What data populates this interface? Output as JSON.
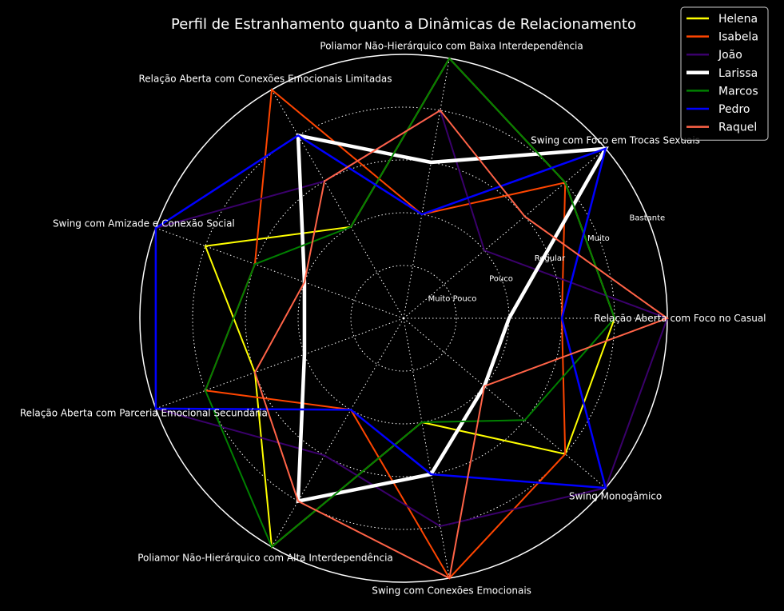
{
  "chart_data": {
    "type": "radar",
    "title": "Perfil de Estranhamento quanto a Dinâmicas de Relacionamento",
    "categories": [
      "Relação Aberta com Foco no Casual",
      "Swing com Foco em Trocas Sexuais",
      "Poliamor Não-Hierárquico com Baixa Interdependência",
      "Relação Aberta com Conexões Emocionais Limitadas",
      "Swing com Amizade e Conexão Social",
      "Relação Aberta com Parceria Emocional Secundária",
      "Poliamor Não-Hierárquico com Alta Interdependência",
      "Swing com Conexões Emocionais",
      "Swing Monogâmico"
    ],
    "ring_labels": [
      "Muito Pouco",
      "Pouco",
      "Regular",
      "Muito",
      "Bastante"
    ],
    "rlim": [
      0,
      5
    ],
    "grid": true,
    "legend_position": "top-right",
    "series": [
      {
        "name": "Helena",
        "color": "#ffff00",
        "width": 2,
        "values": [
          4,
          4,
          5,
          2,
          4,
          3,
          5,
          2,
          4
        ]
      },
      {
        "name": "Isabela",
        "color": "#ff4500",
        "width": 2,
        "values": [
          3,
          4,
          2,
          5,
          3,
          4,
          2,
          5,
          4
        ]
      },
      {
        "name": "João",
        "color": "#3a006b",
        "width": 2,
        "values": [
          5,
          2,
          4,
          3,
          5,
          5,
          3,
          4,
          5
        ]
      },
      {
        "name": "Larissa",
        "color": "#ffffff",
        "width": 4.5,
        "values": [
          2,
          5,
          3,
          4,
          2,
          2,
          4,
          3,
          2
        ]
      },
      {
        "name": "Marcos",
        "color": "#008000",
        "width": 2,
        "values": [
          4,
          4,
          5,
          2,
          3,
          4,
          5,
          2,
          3
        ]
      },
      {
        "name": "Pedro",
        "color": "#0000ff",
        "width": 2.5,
        "values": [
          3,
          5,
          2,
          4,
          5,
          5,
          2,
          3,
          5
        ]
      },
      {
        "name": "Raquel",
        "color": "#ff6347",
        "width": 2,
        "values": [
          5,
          3,
          4,
          3,
          2,
          3,
          4,
          5,
          2
        ]
      }
    ]
  }
}
